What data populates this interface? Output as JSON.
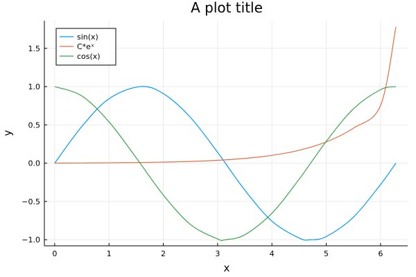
{
  "chart_data": {
    "type": "line",
    "title": "A plot title",
    "xlabel": "x",
    "ylabel": "y",
    "xlim": [
      -0.19,
      6.5
    ],
    "ylim": [
      -1.08,
      1.86
    ],
    "xticks": [
      0,
      1,
      2,
      3,
      4,
      5,
      6
    ],
    "yticks": [
      -1.0,
      -0.5,
      0.0,
      0.5,
      1.0,
      1.5
    ],
    "xtick_labels": [
      "0",
      "1",
      "2",
      "3",
      "4",
      "5",
      "6"
    ],
    "ytick_labels": [
      "−1.0",
      "−0.5",
      "0.0",
      "0.5",
      "1.0",
      "1.5"
    ],
    "grid": true,
    "legend_position": "top-left",
    "x_range": [
      0,
      6.2832
    ],
    "series": [
      {
        "name": "sin(x)",
        "color": "#009AF9",
        "x": [
          0,
          0.5,
          1.0,
          1.5708,
          2.0,
          2.5,
          3.0,
          3.5,
          4.0,
          4.5,
          4.7124,
          5.0,
          5.5,
          6.0,
          6.2832
        ],
        "y": [
          0,
          0.479,
          0.841,
          1.0,
          0.909,
          0.598,
          0.141,
          -0.351,
          -0.757,
          -0.978,
          -1.0,
          -0.959,
          -0.706,
          -0.279,
          0
        ]
      },
      {
        "name": "C*eˣ",
        "color": "#E26F46",
        "x": [
          0,
          0.5,
          1.0,
          1.5,
          2.0,
          2.5,
          3.0,
          3.5,
          4.0,
          4.5,
          5.0,
          5.5,
          6.0,
          6.2832
        ],
        "y": [
          0,
          0.0015,
          0.0048,
          0.0083,
          0.0138,
          0.0228,
          0.0375,
          0.062,
          0.102,
          0.168,
          0.277,
          0.457,
          0.753,
          1.78
        ]
      },
      {
        "name": "cos(x)",
        "color": "#3DA44D",
        "x": [
          0,
          0.5,
          1.0,
          1.5,
          2.0,
          2.5,
          3.0,
          3.1416,
          3.5,
          4.0,
          4.5,
          5.0,
          5.5,
          6.0,
          6.2832
        ],
        "y": [
          1.0,
          0.878,
          0.54,
          0.071,
          -0.416,
          -0.801,
          -0.99,
          -1.0,
          -0.936,
          -0.654,
          -0.211,
          0.284,
          0.709,
          0.96,
          1.0
        ]
      }
    ]
  }
}
